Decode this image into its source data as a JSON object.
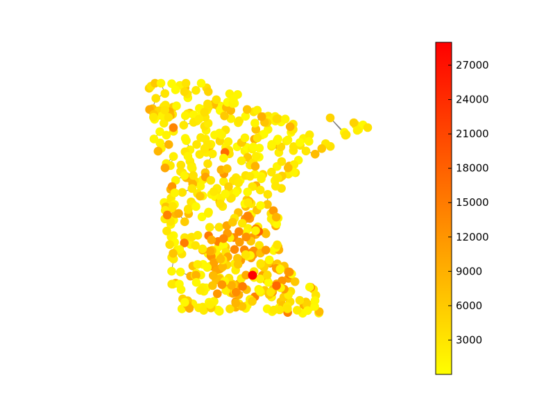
{
  "chart_data": {
    "type": "graph",
    "title": "",
    "description_colormap": "autumn_r",
    "node_color": "yellow-to-red by value",
    "edge_color": "#808080",
    "colorbar": {
      "min": 0,
      "max": 29000,
      "ticks": [
        3000,
        6000,
        9000,
        12000,
        15000,
        18000,
        21000,
        24000,
        27000
      ],
      "tick_labels": [
        "3000",
        "6000",
        "9000",
        "12000",
        "15000",
        "18000",
        "21000",
        "24000",
        "27000"
      ],
      "gradient_colors": [
        "#ffff00",
        "#ff0000"
      ]
    },
    "highlighted_node": {
      "value": 29000
    }
  }
}
